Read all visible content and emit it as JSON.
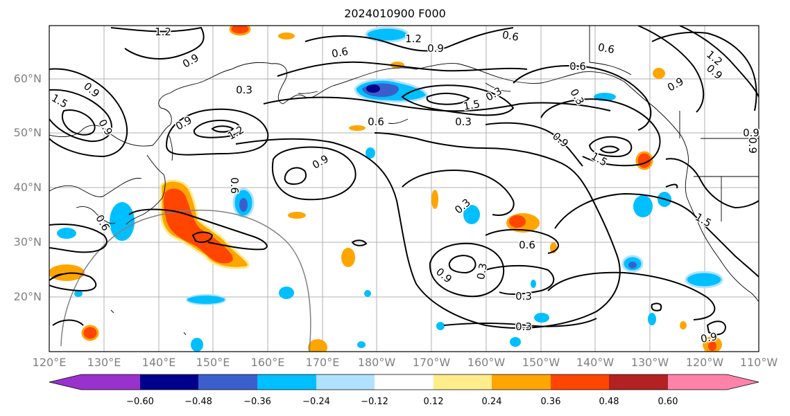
{
  "title": "2024010900 F000",
  "lat_labels": [
    "60°N",
    "50°N",
    "40°N",
    "30°N",
    "20°N"
  ],
  "lon_labels": [
    "120°E",
    "130°E",
    "140°E",
    "150°E",
    "160°E",
    "170°E",
    "180°W",
    "170°W",
    "160°W",
    "150°W",
    "140°W",
    "130°W",
    "120°W",
    "110°W"
  ],
  "colorbar": {
    "ticks": [
      "−0.60",
      "−0.48",
      "−0.36",
      "−0.24",
      "−0.12",
      "0.12",
      "0.24",
      "0.36",
      "0.48",
      "0.60"
    ],
    "colors": [
      "#9932cc",
      "#00008b",
      "#3a5fcd",
      "#00bfff",
      "#b0e2ff",
      "#ffffff",
      "#ffec8b",
      "#ffa500",
      "#ff4500",
      "#b22222",
      "#ff82ab"
    ]
  },
  "contour_labels": [
    "1.2",
    "0.9",
    "0.6",
    "1.2",
    "0.9",
    "0.6",
    "0.6",
    "0.6",
    "1.2",
    "0.9",
    "1.5",
    "0.9",
    "0.9",
    "0.9",
    "0.3",
    "0.6",
    "0.3",
    "0.9",
    "1.2",
    "0.9",
    "1.5",
    "0.9",
    "0.3",
    "0.9",
    "0.3",
    "0.6",
    "0.9",
    "0.3",
    "0.3",
    "0.3",
    "1.5",
    "0.9",
    "0.6",
    "0.3",
    "0.6",
    "1.5",
    "0.9"
  ]
}
